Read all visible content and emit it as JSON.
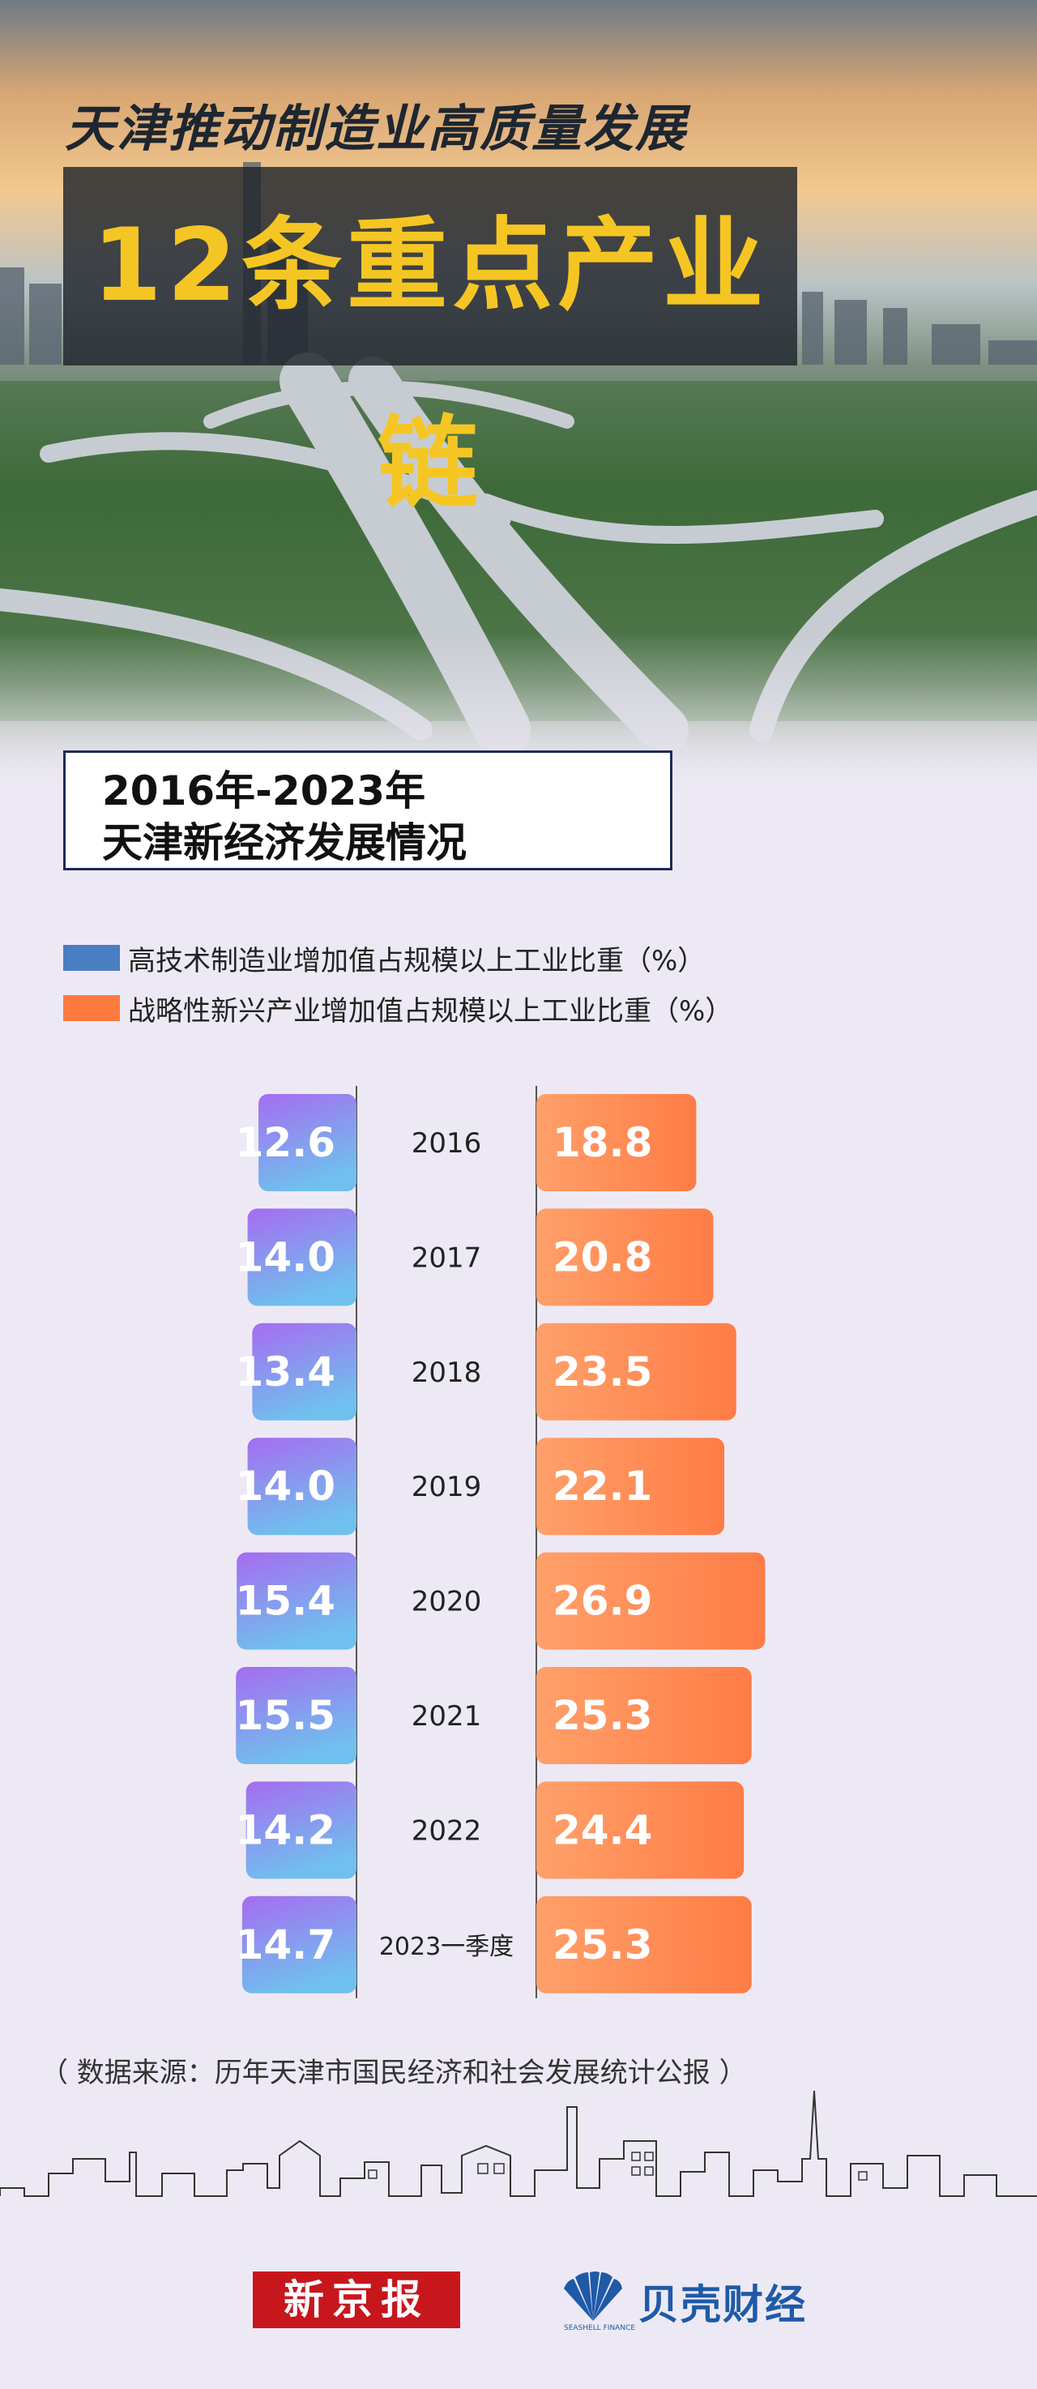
{
  "header": {
    "title_top": "天津推动制造业高质量发展",
    "title_main": "12条重点产业链"
  },
  "subtitle": {
    "line1": "2016年-2023年",
    "line2": "天津新经济发展情况"
  },
  "colors": {
    "left_bar_top": "#a66cf0",
    "left_bar_bottom": "#6fc0ee",
    "right_bar_left": "#ffa06a",
    "right_bar_right": "#ff7c45",
    "legend_blue": "#4a7ec2",
    "legend_orange": "#ff7a3e"
  },
  "chart_data": {
    "type": "bar",
    "categories": [
      "2016",
      "2017",
      "2018",
      "2019",
      "2020",
      "2021",
      "2022",
      "2023一季度"
    ],
    "series": [
      {
        "name": "高技术制造业增加值占规模以上工业比重（%）",
        "values": [
          12.6,
          14.0,
          13.4,
          14.0,
          15.4,
          15.5,
          14.2,
          14.7
        ]
      },
      {
        "name": "战略性新兴产业增加值占规模以上工业比重（%）",
        "values": [
          18.8,
          20.8,
          23.5,
          22.1,
          26.9,
          25.3,
          24.4,
          25.3
        ]
      }
    ],
    "value_labels": {
      "left": [
        "12.6",
        "14.0",
        "13.4",
        "14.0",
        "15.4",
        "15.5",
        "14.2",
        "14.7"
      ],
      "right": [
        "18.8",
        "20.8",
        "23.5",
        "22.1",
        "26.9",
        "25.3",
        "24.4",
        "25.3"
      ]
    },
    "layout": "butterfly",
    "legend_position": "top-left"
  },
  "source": "（ 数据来源：历年天津市国民经济和社会发展统计公报 ）",
  "footer": {
    "logo_xjb": "新京报",
    "logo_bk": "贝壳财经",
    "logo_bk_sub": "SEASHELL FINANCE"
  }
}
